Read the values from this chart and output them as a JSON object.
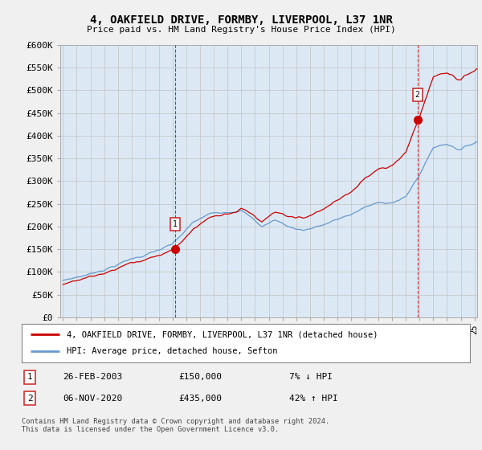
{
  "title": "4, OAKFIELD DRIVE, FORMBY, LIVERPOOL, L37 1NR",
  "subtitle": "Price paid vs. HM Land Registry's House Price Index (HPI)",
  "ylabel_ticks": [
    "£0",
    "£50K",
    "£100K",
    "£150K",
    "£200K",
    "£250K",
    "£300K",
    "£350K",
    "£400K",
    "£450K",
    "£500K",
    "£550K",
    "£600K"
  ],
  "ytick_values": [
    0,
    50000,
    100000,
    150000,
    200000,
    250000,
    300000,
    350000,
    400000,
    450000,
    500000,
    550000,
    600000
  ],
  "price_paid_color": "#cc0000",
  "hpi_color": "#6699cc",
  "sale1_t": 2003.15,
  "sale1_price": 150000,
  "sale2_t": 2020.84,
  "sale2_price": 435000,
  "legend_property_label": "4, OAKFIELD DRIVE, FORMBY, LIVERPOOL, L37 1NR (detached house)",
  "legend_hpi_label": "HPI: Average price, detached house, Sefton",
  "table_data": [
    {
      "num": "1",
      "date": "26-FEB-2003",
      "price": "£150,000",
      "hpi": "7% ↓ HPI"
    },
    {
      "num": "2",
      "date": "06-NOV-2020",
      "price": "£435,000",
      "hpi": "42% ↑ HPI"
    }
  ],
  "footer": "Contains HM Land Registry data © Crown copyright and database right 2024.\nThis data is licensed under the Open Government Licence v3.0.",
  "background_color": "#f0f0f0",
  "plot_bg_color": "#dce9f5",
  "grid_color": "#c8c8c8"
}
